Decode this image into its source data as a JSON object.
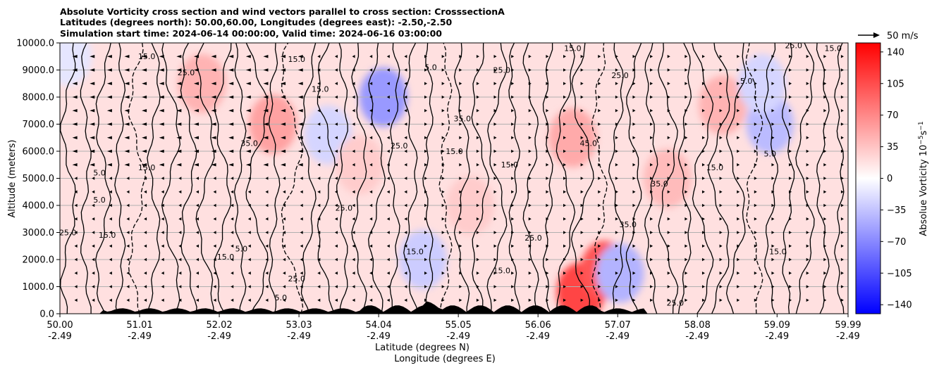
{
  "chart_data": {
    "type": "heatmap",
    "title_lines": [
      "Absolute Vorticity cross section and wind vectors parallel to cross section: CrosssectionA",
      "Latitudes (degrees north): 50.00,60.00, Longitudes (degrees east): -2.50,-2.50",
      "Simulation start time: 2024-06-14 00:00:00, Valid time: 2024-06-16 03:00:00"
    ],
    "ylabel": "Altitude (meters)",
    "xlabel_lines": [
      "Latitude (degrees N)",
      "Longitude (degrees E)"
    ],
    "ylim": [
      0,
      10000
    ],
    "yticks": [
      "0.0",
      "1000.0",
      "2000.0",
      "3000.0",
      "4000.0",
      "5000.0",
      "6000.0",
      "7000.0",
      "8000.0",
      "9000.0",
      "10000.0"
    ],
    "xlim": [
      50.0,
      59.99
    ],
    "xticks": [
      {
        "lat": "50.00",
        "lon": "-2.49"
      },
      {
        "lat": "51.01",
        "lon": "-2.49"
      },
      {
        "lat": "52.02",
        "lon": "-2.49"
      },
      {
        "lat": "53.03",
        "lon": "-2.49"
      },
      {
        "lat": "54.04",
        "lon": "-2.49"
      },
      {
        "lat": "55.05",
        "lon": "-2.49"
      },
      {
        "lat": "56.06",
        "lon": "-2.49"
      },
      {
        "lat": "57.07",
        "lon": "-2.49"
      },
      {
        "lat": "58.08",
        "lon": "-2.49"
      },
      {
        "lat": "59.09",
        "lon": "-2.49"
      },
      {
        "lat": "59.99",
        "lon": "-2.49"
      }
    ],
    "colorbar": {
      "label": "Absolue Vorticity 10",
      "label_exp": "−5",
      "label_unit": "s",
      "label_unit_exp": "−1",
      "range": [
        -150,
        150
      ],
      "ticks": [
        "140",
        "105",
        "70",
        "35",
        "0",
        "−35",
        "−70",
        "−105",
        "−140"
      ],
      "colors": {
        "min": "#0000ff",
        "mid": "#ffffff",
        "max": "#ff0000"
      }
    },
    "quiver_key": "50 m/s",
    "field_hotspots": [
      {
        "lat": 51.8,
        "alt": 8500,
        "value": 45
      },
      {
        "lat": 52.7,
        "alt": 7000,
        "value": 55
      },
      {
        "lat": 54.1,
        "alt": 8000,
        "value": -60
      },
      {
        "lat": 53.4,
        "alt": 6600,
        "value": -25
      },
      {
        "lat": 54.6,
        "alt": 2000,
        "value": -30
      },
      {
        "lat": 56.5,
        "alt": 6500,
        "value": 50
      },
      {
        "lat": 56.6,
        "alt": 800,
        "value": 110
      },
      {
        "lat": 56.9,
        "alt": 1600,
        "value": 100
      },
      {
        "lat": 57.1,
        "alt": 1500,
        "value": -45
      },
      {
        "lat": 58.4,
        "alt": 7700,
        "value": 45
      },
      {
        "lat": 59.0,
        "alt": 7000,
        "value": -40
      },
      {
        "lat": 58.9,
        "alt": 8500,
        "value": -25
      },
      {
        "lat": 55.2,
        "alt": 4000,
        "value": 30
      },
      {
        "lat": 53.8,
        "alt": 5500,
        "value": 30
      },
      {
        "lat": 57.7,
        "alt": 5000,
        "value": 40
      },
      {
        "lat": 50.1,
        "alt": 9500,
        "value": -15
      }
    ],
    "contour_labels": [
      {
        "text": "15.0",
        "lat": 51.1,
        "alt": 9400
      },
      {
        "text": "25.0",
        "lat": 51.6,
        "alt": 8800
      },
      {
        "text": "15.0",
        "lat": 53.0,
        "alt": 9300
      },
      {
        "text": "5.0",
        "lat": 54.7,
        "alt": 9000
      },
      {
        "text": "25.0",
        "lat": 55.6,
        "alt": 8900
      },
      {
        "text": "15.0",
        "lat": 56.5,
        "alt": 9700
      },
      {
        "text": "25.0",
        "lat": 57.1,
        "alt": 8700
      },
      {
        "text": "15.0",
        "lat": 53.3,
        "alt": 8200
      },
      {
        "text": "35.0",
        "lat": 52.4,
        "alt": 6200
      },
      {
        "text": "15.0",
        "lat": 55.0,
        "alt": 5900
      },
      {
        "text": "15.0",
        "lat": 55.7,
        "alt": 5400
      },
      {
        "text": "5.0",
        "lat": 59.0,
        "alt": 5800
      },
      {
        "text": "15.0",
        "lat": 58.3,
        "alt": 5300
      },
      {
        "text": "35.0",
        "lat": 57.6,
        "alt": 4700
      },
      {
        "text": "25.0",
        "lat": 53.6,
        "alt": 3800
      },
      {
        "text": "35.0",
        "lat": 57.2,
        "alt": 3200
      },
      {
        "text": "15.0",
        "lat": 59.1,
        "alt": 2200
      },
      {
        "text": "5.0",
        "lat": 52.3,
        "alt": 2300
      },
      {
        "text": "15.0",
        "lat": 52.1,
        "alt": 2000
      },
      {
        "text": "25.0",
        "lat": 53.0,
        "alt": 1200
      },
      {
        "text": "5.0",
        "lat": 52.8,
        "alt": 500
      },
      {
        "text": "25.0",
        "lat": 57.8,
        "alt": 300
      },
      {
        "text": "5.0",
        "lat": 50.5,
        "alt": 5100
      },
      {
        "text": "15.0",
        "lat": 51.1,
        "alt": 5300
      },
      {
        "text": "5.0",
        "lat": 50.5,
        "alt": 4100
      },
      {
        "text": "25.0",
        "lat": 50.1,
        "alt": 2900
      },
      {
        "text": "15.0",
        "lat": 50.6,
        "alt": 2800
      },
      {
        "text": "45.0",
        "lat": 56.7,
        "alt": 6200
      },
      {
        "text": "35.0",
        "lat": 55.1,
        "alt": 7100
      },
      {
        "text": "25.0",
        "lat": 54.3,
        "alt": 6100
      },
      {
        "text": "15.0",
        "lat": 54.5,
        "alt": 2200
      },
      {
        "text": "25.0",
        "lat": 56.0,
        "alt": 2700
      },
      {
        "text": "15.0",
        "lat": 55.6,
        "alt": 1500
      },
      {
        "text": "5.0",
        "lat": 58.7,
        "alt": 8500
      },
      {
        "text": "25.0",
        "lat": 59.3,
        "alt": 9800
      },
      {
        "text": "15.0",
        "lat": 59.8,
        "alt": 9700
      }
    ]
  }
}
